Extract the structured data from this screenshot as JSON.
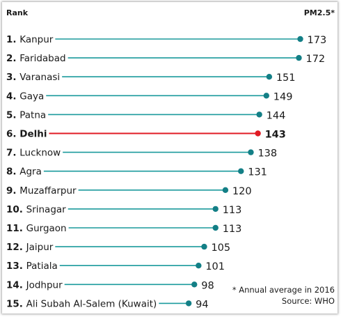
{
  "chart_data": {
    "type": "lollipop",
    "header_left": "Rank",
    "header_right": "PM2.5*",
    "rows": [
      {
        "rank": "1.",
        "city": "Kanpur",
        "value": 173
      },
      {
        "rank": "2.",
        "city": "Faridabad",
        "value": 172
      },
      {
        "rank": "3.",
        "city": "Varanasi",
        "value": 151
      },
      {
        "rank": "4.",
        "city": "Gaya",
        "value": 149
      },
      {
        "rank": "5.",
        "city": "Patna",
        "value": 144
      },
      {
        "rank": "6.",
        "city": "Delhi",
        "value": 143,
        "highlight": true
      },
      {
        "rank": "7.",
        "city": "Lucknow",
        "value": 138
      },
      {
        "rank": "8.",
        "city": "Agra",
        "value": 131
      },
      {
        "rank": "9.",
        "city": "Muzaffarpur",
        "value": 120
      },
      {
        "rank": "10.",
        "city": "Srinagar",
        "value": 113
      },
      {
        "rank": "11.",
        "city": "Gurgaon",
        "value": 113
      },
      {
        "rank": "12.",
        "city": "Jaipur",
        "value": 105
      },
      {
        "rank": "13.",
        "city": "Patiala",
        "value": 101
      },
      {
        "rank": "14.",
        "city": "Jodhpur",
        "value": 98
      },
      {
        "rank": "15.",
        "city": "Ali Subah Al-Salem (Kuwait)",
        "value": 94
      }
    ],
    "notes": [
      "* Annual average in 2016",
      "Source: WHO"
    ],
    "colors": {
      "line": "#1a9a9c",
      "dot": "#137f86",
      "highlight": "#e01b24",
      "text": "#1a1a1a"
    }
  }
}
